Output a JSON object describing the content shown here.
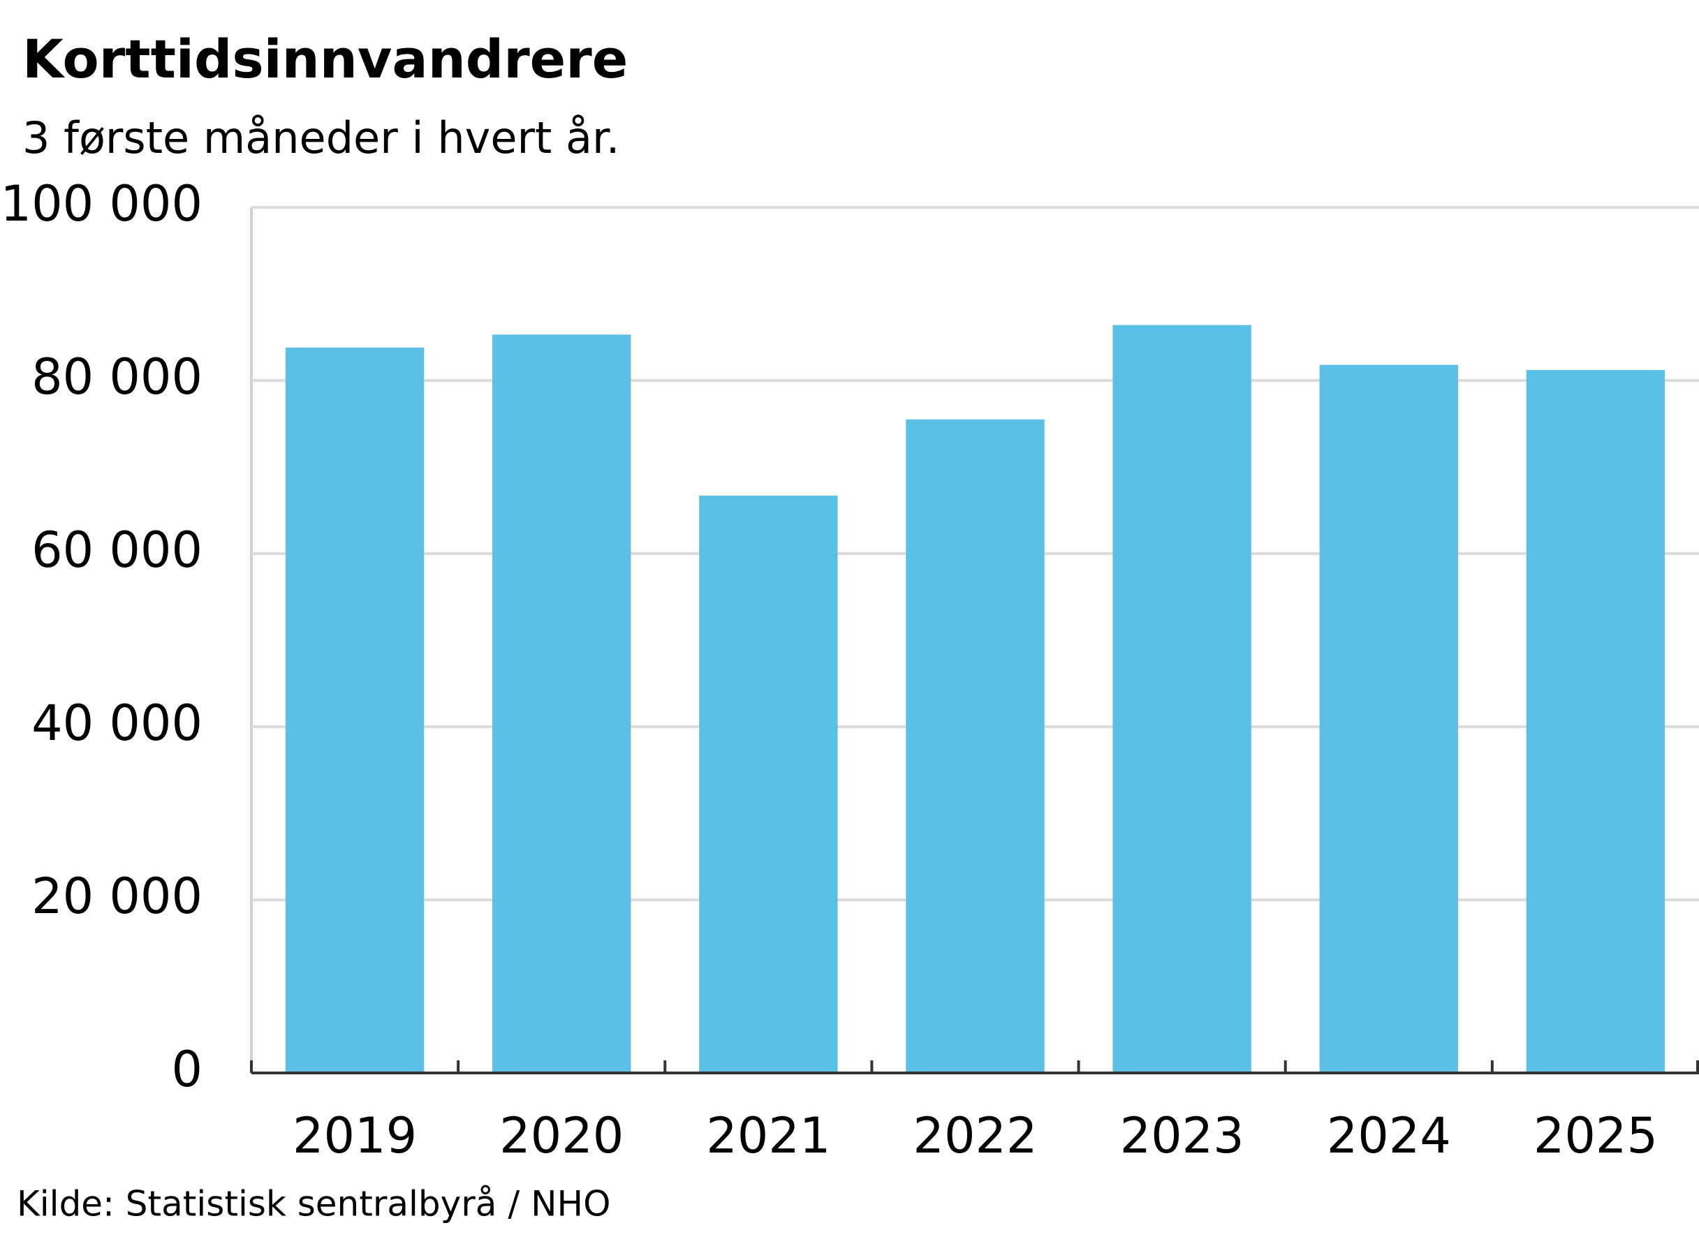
{
  "chart_data": {
    "type": "bar",
    "title": "Korttidsinnvandrere",
    "subtitle": "3 første måneder i hvert år.",
    "categories": [
      "2019",
      "2020",
      "2021",
      "2022",
      "2023",
      "2024",
      "2025"
    ],
    "values": [
      83800,
      85300,
      66700,
      75500,
      86400,
      81800,
      81200
    ],
    "color": "#5bc0e6",
    "ylim": [
      0,
      100000
    ],
    "yticks": [
      0,
      {
        "value": 20000,
        "label": "20 000"
      },
      {
        "value": 40000,
        "label": "40 000"
      },
      {
        "value": 60000,
        "label": "60 000"
      },
      {
        "value": 80000,
        "label": "80 000"
      },
      {
        "value": 100000,
        "label": "100 000"
      }
    ],
    "grid": true,
    "source": "Kilde: Statistisk sentralbyrå / NHO"
  }
}
